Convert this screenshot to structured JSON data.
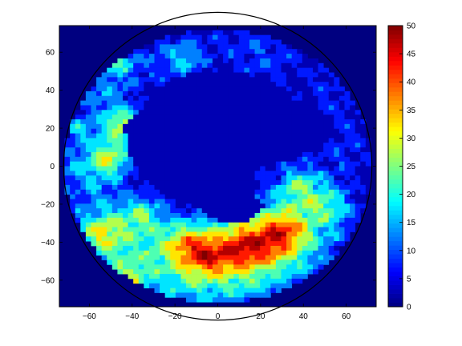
{
  "chart_data": {
    "type": "heatmap",
    "plot_style": "filled contour map (polar projection)",
    "title": "",
    "xlabel": "",
    "ylabel": "",
    "xlim": [
      -74,
      74
    ],
    "ylim": [
      -74,
      74
    ],
    "x_ticks": [
      -60,
      -40,
      -20,
      0,
      20,
      40,
      60
    ],
    "y_ticks": [
      60,
      40,
      20,
      0,
      -20,
      -40,
      -60
    ],
    "x_tick_labels": [
      "−60",
      "−40",
      "−20",
      "0",
      "20",
      "40",
      "60"
    ],
    "y_tick_labels": [
      "60",
      "40",
      "20",
      "0",
      "−20",
      "−40",
      "−60"
    ],
    "colorbar": {
      "range": [
        0,
        50
      ],
      "ticks": [
        0,
        5,
        10,
        15,
        20,
        25,
        30,
        35,
        40,
        45,
        50
      ],
      "tick_labels": [
        "0",
        "5",
        "10",
        "15",
        "20",
        "25",
        "30",
        "35",
        "40",
        "45",
        "50"
      ],
      "colormap": "jet"
    },
    "domain_radius": 72,
    "background_value": 0,
    "blobs": [
      {
        "cx": 40,
        "cy": -30,
        "r": 26,
        "v": 14
      },
      {
        "cx": 18,
        "cy": -52,
        "r": 26,
        "v": 16
      },
      {
        "cx": -15,
        "cy": -55,
        "r": 24,
        "v": 18
      },
      {
        "cx": -48,
        "cy": -38,
        "r": 22,
        "v": 18
      },
      {
        "cx": -60,
        "cy": 0,
        "r": 18,
        "v": 14
      },
      {
        "cx": -55,
        "cy": 42,
        "r": 18,
        "v": 12
      },
      {
        "cx": -20,
        "cy": 60,
        "r": 18,
        "v": 10
      },
      {
        "cx": 20,
        "cy": 60,
        "r": 18,
        "v": 9
      },
      {
        "cx": 55,
        "cy": 40,
        "r": 20,
        "v": 6
      },
      {
        "cx": 60,
        "cy": 10,
        "r": 16,
        "v": 6
      },
      {
        "cx": 30,
        "cy": -35,
        "r": 12,
        "v": 22
      },
      {
        "cx": 12,
        "cy": -42,
        "r": 13,
        "v": 24
      },
      {
        "cx": -14,
        "cy": -40,
        "r": 12,
        "v": 18
      },
      {
        "cx": -5,
        "cy": -48,
        "r": 10,
        "v": 14
      },
      {
        "cx": -45,
        "cy": 22,
        "r": 9,
        "v": 24
      },
      {
        "cx": -50,
        "cy": 5,
        "r": 9,
        "v": 18
      },
      {
        "cx": -55,
        "cy": -35,
        "r": 10,
        "v": 14
      },
      {
        "cx": -42,
        "cy": -60,
        "r": 9,
        "v": 16
      },
      {
        "cx": 38,
        "cy": -10,
        "r": 10,
        "v": 14
      },
      {
        "cx": 52,
        "cy": -20,
        "r": 10,
        "v": 12
      },
      {
        "cx": -35,
        "cy": -25,
        "r": 9,
        "v": 12
      },
      {
        "cx": -45,
        "cy": 55,
        "r": 8,
        "v": 12
      },
      {
        "cx": -15,
        "cy": 55,
        "r": 7,
        "v": 8
      },
      {
        "cx": -65,
        "cy": 20,
        "r": 7,
        "v": 10
      }
    ],
    "continent_vertices": [
      [
        -38,
        28
      ],
      [
        -30,
        38
      ],
      [
        -15,
        48
      ],
      [
        5,
        51
      ],
      [
        20,
        46
      ],
      [
        28,
        36
      ],
      [
        40,
        32
      ],
      [
        56,
        22
      ],
      [
        48,
        12
      ],
      [
        28,
        4
      ],
      [
        18,
        0
      ],
      [
        16,
        -14
      ],
      [
        22,
        -22
      ],
      [
        14,
        -30
      ],
      [
        -2,
        -28
      ],
      [
        -10,
        -22
      ],
      [
        -22,
        -18
      ],
      [
        -36,
        -6
      ],
      [
        -42,
        8
      ],
      [
        -44,
        22
      ]
    ]
  }
}
